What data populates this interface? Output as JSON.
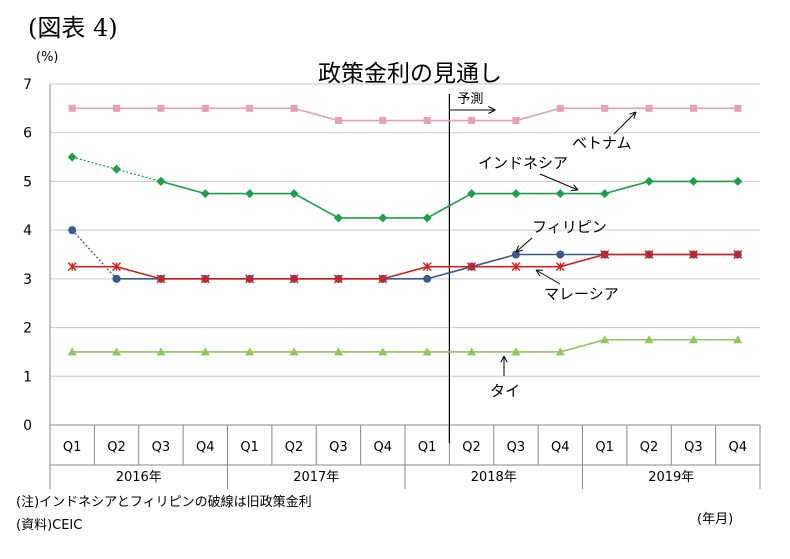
{
  "figure_label": "(図表 4)",
  "unit_label": "(%)",
  "title": "政策金利の見通し",
  "note": "(注)インドネシアとフィリピンの破線は旧政策金利",
  "source": "(資料)CEIC",
  "period_label": "(年月)",
  "forecast_label": "予測",
  "colors": {
    "vietnam": "#e8a0b8",
    "indonesia": "#1ea048",
    "philippines": "#3b5a8c",
    "malaysia": "#d62020",
    "thailand": "#8ec85a",
    "grid": "#c8c8c8"
  },
  "chart_data": {
    "type": "line",
    "title": "政策金利の見通し",
    "ylabel": "(%)",
    "xlabel": "(年月)",
    "ylim": [
      0,
      7
    ],
    "yticks": [
      0,
      1,
      2,
      3,
      4,
      5,
      6,
      7
    ],
    "grid": true,
    "categories": [
      "Q1",
      "Q2",
      "Q3",
      "Q4",
      "Q1",
      "Q2",
      "Q3",
      "Q4",
      "Q1",
      "Q2",
      "Q3",
      "Q4",
      "Q1",
      "Q2",
      "Q3",
      "Q4"
    ],
    "years": [
      "2016年",
      "2017年",
      "2018年",
      "2019年"
    ],
    "forecast_start_after_index": 8,
    "series": [
      {
        "key": "vietnam",
        "name": "ベトナム",
        "marker": "square",
        "values": [
          6.5,
          6.5,
          6.5,
          6.5,
          6.5,
          6.5,
          6.25,
          6.25,
          6.25,
          6.25,
          6.25,
          6.5,
          6.5,
          6.5,
          6.5,
          6.5
        ]
      },
      {
        "key": "indonesia",
        "name": "インドネシア",
        "marker": "diamond",
        "old_values": [
          5.5,
          5.25,
          5.0
        ],
        "values": [
          null,
          null,
          5.0,
          4.75,
          4.75,
          4.75,
          4.25,
          4.25,
          4.25,
          4.75,
          4.75,
          4.75,
          4.75,
          5.0,
          5.0,
          5.0
        ]
      },
      {
        "key": "philippines",
        "name": "フィリピン",
        "marker": "circle",
        "old_values": [
          4.0,
          3.0
        ],
        "values": [
          null,
          3.0,
          3.0,
          3.0,
          3.0,
          3.0,
          3.0,
          3.0,
          3.0,
          3.25,
          3.5,
          3.5,
          3.5,
          3.5,
          3.5,
          3.5
        ]
      },
      {
        "key": "malaysia",
        "name": "マレーシア",
        "marker": "star",
        "values": [
          3.25,
          3.25,
          3.0,
          3.0,
          3.0,
          3.0,
          3.0,
          3.0,
          3.25,
          3.25,
          3.25,
          3.25,
          3.5,
          3.5,
          3.5,
          3.5
        ]
      },
      {
        "key": "thailand",
        "name": "タイ",
        "marker": "triangle",
        "values": [
          1.5,
          1.5,
          1.5,
          1.5,
          1.5,
          1.5,
          1.5,
          1.5,
          1.5,
          1.5,
          1.5,
          1.5,
          1.75,
          1.75,
          1.75,
          1.75
        ]
      }
    ]
  }
}
